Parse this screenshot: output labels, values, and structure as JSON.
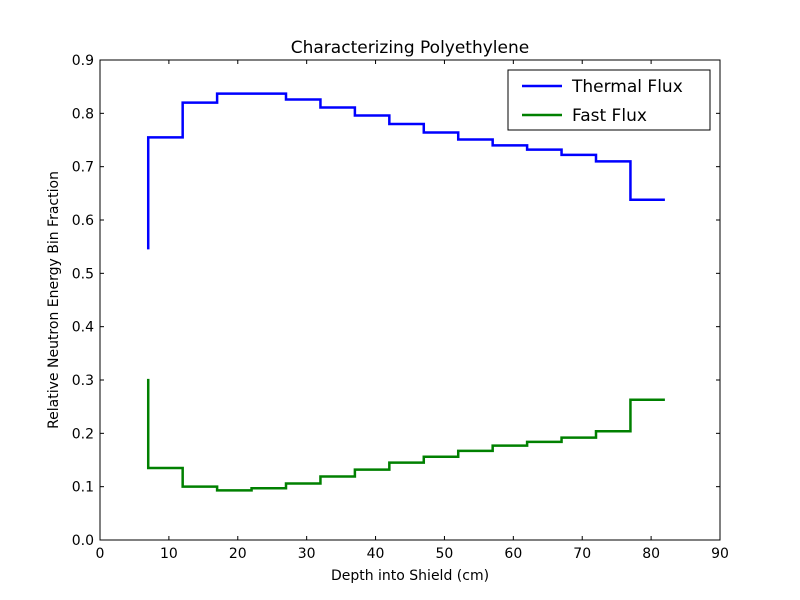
{
  "chart_data": {
    "type": "line",
    "step": "post",
    "title": "Characterizing Polyethylene",
    "xlabel": "Depth into Shield (cm)",
    "ylabel": "Relative Neutron Energy Bin Fraction",
    "xlim": [
      0,
      90
    ],
    "ylim": [
      0.0,
      0.9
    ],
    "xticks": [
      "0",
      "10",
      "20",
      "30",
      "40",
      "50",
      "60",
      "70",
      "80",
      "90"
    ],
    "yticks": [
      "0.0",
      "0.1",
      "0.2",
      "0.3",
      "0.4",
      "0.5",
      "0.6",
      "0.7",
      "0.8",
      "0.9"
    ],
    "grid": false,
    "legend_position": "top-right",
    "x": [
      7,
      12,
      17,
      22,
      27,
      32,
      37,
      42,
      47,
      52,
      57,
      62,
      67,
      72,
      77,
      82
    ],
    "series": [
      {
        "name": "Thermal Flux",
        "color": "#0000ff",
        "start_value": 0.545,
        "values": [
          0.755,
          0.82,
          0.837,
          0.837,
          0.826,
          0.811,
          0.796,
          0.78,
          0.764,
          0.751,
          0.74,
          0.732,
          0.722,
          0.71,
          0.638,
          0.638
        ]
      },
      {
        "name": "Fast Flux",
        "color": "#008000",
        "start_value": 0.302,
        "values": [
          0.135,
          0.1,
          0.093,
          0.097,
          0.106,
          0.119,
          0.132,
          0.145,
          0.156,
          0.167,
          0.177,
          0.184,
          0.192,
          0.204,
          0.263,
          0.263
        ]
      }
    ]
  }
}
